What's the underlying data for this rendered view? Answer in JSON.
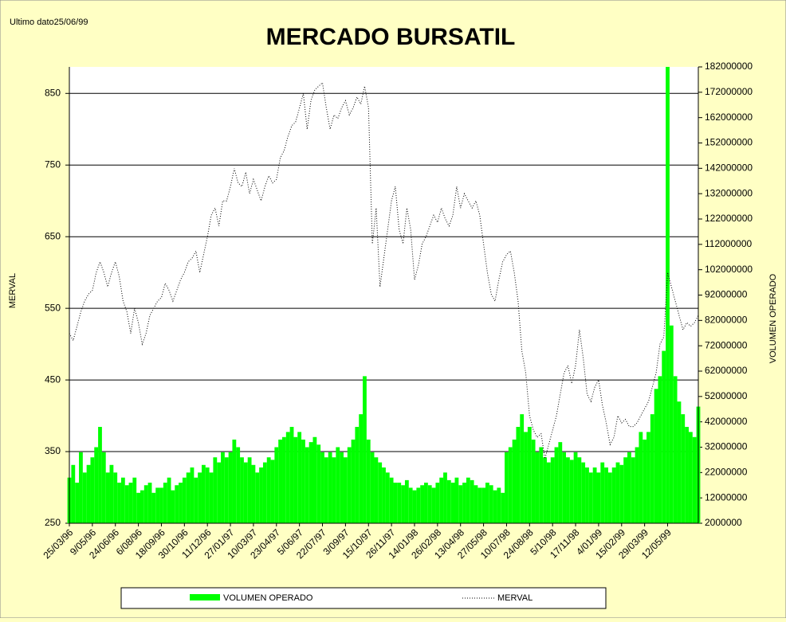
{
  "chart_data": {
    "type": "combo",
    "title": "MERCADO BURSATIL",
    "annotation": "Ultimo dato25/06/99",
    "y_label": "MERVAL",
    "y2_label": "VOLUMEN OPERADO",
    "grid": true,
    "legend": "bottom",
    "ylim": [
      250,
      887
    ],
    "yticks": [
      250,
      350,
      450,
      550,
      650,
      750,
      850
    ],
    "y2lim": [
      2000000,
      182000000
    ],
    "y2ticks": [
      2000000,
      12000000,
      22000000,
      32000000,
      42000000,
      52000000,
      62000000,
      72000000,
      82000000,
      92000000,
      102000000,
      112000000,
      122000000,
      132000000,
      142000000,
      152000000,
      162000000,
      172000000,
      182000000
    ],
    "categories": [
      "25/03/96",
      null,
      null,
      null,
      null,
      null,
      "9/05/96",
      null,
      null,
      null,
      null,
      null,
      "24/06/96",
      null,
      null,
      null,
      null,
      null,
      "6/08/96",
      null,
      null,
      null,
      null,
      null,
      "18/09/96",
      null,
      null,
      null,
      null,
      null,
      "30/10/96",
      null,
      null,
      null,
      null,
      null,
      "11/12/96",
      null,
      null,
      null,
      null,
      null,
      "27/01/97",
      null,
      null,
      null,
      null,
      null,
      "10/03/97",
      null,
      null,
      null,
      null,
      null,
      "23/04/97",
      null,
      null,
      null,
      null,
      null,
      "5/06/97",
      null,
      null,
      null,
      null,
      null,
      "22/07/97",
      null,
      null,
      null,
      null,
      null,
      "3/09/97",
      null,
      null,
      null,
      null,
      null,
      "15/10/97",
      null,
      null,
      null,
      null,
      null,
      "26/11/97",
      null,
      null,
      null,
      null,
      null,
      "14/01/98",
      null,
      null,
      null,
      null,
      null,
      "26/02/98",
      null,
      null,
      null,
      null,
      null,
      "13/04/98",
      null,
      null,
      null,
      null,
      null,
      "27/05/98",
      null,
      null,
      null,
      null,
      null,
      "10/07/98",
      null,
      null,
      null,
      null,
      null,
      "24/08/98",
      null,
      null,
      null,
      null,
      null,
      "5/10/98",
      null,
      null,
      null,
      null,
      null,
      "17/11/98",
      null,
      null,
      null,
      null,
      null,
      "4/01/99",
      null,
      null,
      null,
      null,
      null,
      "15/02/99",
      null,
      null,
      null,
      null,
      null,
      "29/03/99",
      null,
      null,
      null,
      null,
      null,
      "12/05/99",
      null,
      null,
      null,
      null,
      null,
      null,
      null,
      null
    ],
    "series": [
      {
        "name": "VOLUMEN OPERADO",
        "type": "bar",
        "axis": "y2",
        "color": "#00ff00",
        "values": [
          20000000,
          25000000,
          18000000,
          30000000,
          22000000,
          25000000,
          28000000,
          32000000,
          40000000,
          30000000,
          22000000,
          25000000,
          22000000,
          18000000,
          20000000,
          17000000,
          18000000,
          20000000,
          14000000,
          15000000,
          17000000,
          18000000,
          14000000,
          16000000,
          16000000,
          18000000,
          20000000,
          15000000,
          17000000,
          18000000,
          20000000,
          22000000,
          24000000,
          20000000,
          22000000,
          25000000,
          24000000,
          22000000,
          28000000,
          26000000,
          30000000,
          28000000,
          30000000,
          35000000,
          32000000,
          28000000,
          26000000,
          28000000,
          25000000,
          22000000,
          24000000,
          26000000,
          28000000,
          27000000,
          32000000,
          35000000,
          36000000,
          38000000,
          40000000,
          36000000,
          38000000,
          35000000,
          32000000,
          34000000,
          36000000,
          33000000,
          30000000,
          28000000,
          30000000,
          28000000,
          32000000,
          30000000,
          28000000,
          32000000,
          35000000,
          40000000,
          45000000,
          60000000,
          35000000,
          30000000,
          28000000,
          26000000,
          24000000,
          22000000,
          20000000,
          18000000,
          18000000,
          17000000,
          19000000,
          16000000,
          15000000,
          16000000,
          17000000,
          18000000,
          17000000,
          16000000,
          18000000,
          20000000,
          22000000,
          19000000,
          18000000,
          20000000,
          17000000,
          18000000,
          20000000,
          19000000,
          17000000,
          16000000,
          16000000,
          18000000,
          17000000,
          15000000,
          16000000,
          14000000,
          30000000,
          32000000,
          35000000,
          40000000,
          45000000,
          38000000,
          40000000,
          35000000,
          30000000,
          32000000,
          28000000,
          26000000,
          28000000,
          32000000,
          34000000,
          30000000,
          28000000,
          27000000,
          30000000,
          28000000,
          26000000,
          24000000,
          22000000,
          24000000,
          22000000,
          26000000,
          24000000,
          22000000,
          24000000,
          26000000,
          25000000,
          28000000,
          30000000,
          28000000,
          32000000,
          38000000,
          35000000,
          38000000,
          45000000,
          55000000,
          60000000,
          70000000,
          182000000,
          80000000,
          60000000,
          50000000,
          45000000,
          40000000,
          38000000,
          36000000,
          48000000
        ]
      },
      {
        "name": "MERVAL",
        "type": "line",
        "color": "#000000",
        "values": [
          515,
          505,
          525,
          545,
          560,
          570,
          575,
          600,
          615,
          600,
          580,
          600,
          615,
          595,
          560,
          545,
          515,
          550,
          530,
          500,
          515,
          540,
          550,
          560,
          565,
          585,
          575,
          560,
          575,
          590,
          600,
          615,
          620,
          630,
          600,
          625,
          650,
          680,
          690,
          665,
          700,
          700,
          720,
          745,
          725,
          720,
          740,
          710,
          730,
          715,
          700,
          720,
          735,
          725,
          730,
          760,
          770,
          790,
          805,
          810,
          830,
          850,
          800,
          840,
          855,
          860,
          865,
          830,
          800,
          820,
          815,
          830,
          840,
          820,
          830,
          845,
          835,
          860,
          830,
          640,
          690,
          580,
          620,
          660,
          700,
          720,
          660,
          640,
          690,
          660,
          590,
          610,
          640,
          650,
          665,
          680,
          670,
          690,
          675,
          665,
          680,
          720,
          690,
          710,
          700,
          690,
          700,
          680,
          640,
          600,
          570,
          560,
          590,
          615,
          625,
          630,
          600,
          560,
          490,
          460,
          400,
          380,
          370,
          375,
          340,
          360,
          380,
          400,
          430,
          460,
          470,
          445,
          470,
          520,
          480,
          430,
          420,
          440,
          450,
          415,
          390,
          360,
          370,
          400,
          390,
          395,
          385,
          385,
          390,
          400,
          410,
          420,
          440,
          460,
          500,
          510,
          600,
          580,
          560,
          540,
          520,
          530,
          525,
          530,
          540
        ]
      }
    ]
  }
}
